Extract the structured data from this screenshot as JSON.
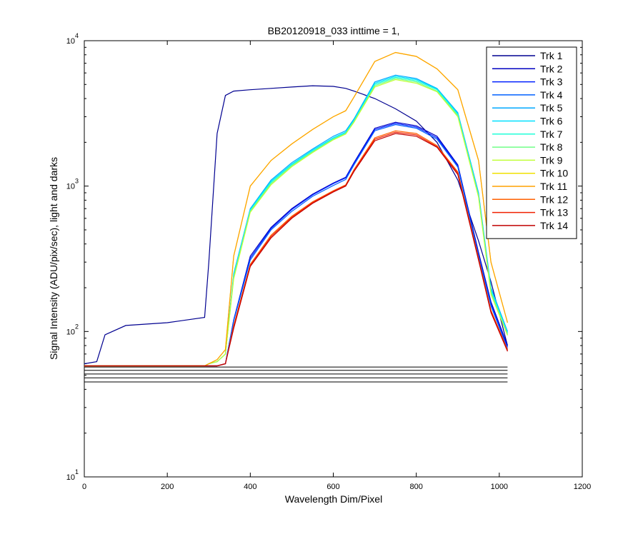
{
  "chart_data": {
    "type": "line",
    "title": "BB20120918_033 inttime = 1,",
    "xlabel": "Wavelength Dim/Pixel",
    "ylabel": "Signal Intensity (ADU/pix/sec), light and darks",
    "xlim": [
      0,
      1200
    ],
    "ylim": [
      10,
      10000
    ],
    "yscale": "log",
    "grid": false,
    "legend_position": "top-right",
    "x_ticks": [
      0,
      200,
      400,
      600,
      800,
      1000,
      1200
    ],
    "y_ticks": [
      {
        "value": 10,
        "base": "10",
        "exp": "1"
      },
      {
        "value": 100,
        "base": "10",
        "exp": "2"
      },
      {
        "value": 1000,
        "base": "10",
        "exp": "3"
      },
      {
        "value": 10000,
        "base": "10",
        "exp": "4"
      }
    ],
    "x": [
      0,
      30,
      50,
      100,
      200,
      290,
      300,
      320,
      340,
      360,
      400,
      450,
      500,
      550,
      600,
      630,
      650,
      700,
      750,
      800,
      850,
      900,
      950,
      980,
      1020
    ],
    "series": [
      {
        "name": "Trk 1",
        "color": "#000090",
        "values": [
          60,
          62,
          95,
          110,
          115,
          125,
          300,
          2300,
          4200,
          4500,
          4600,
          4700,
          4800,
          4900,
          4850,
          4700,
          4500,
          4000,
          3400,
          2800,
          2000,
          1100,
          420,
          220,
          80
        ]
      },
      {
        "name": "Trk 2",
        "color": "#0000c0",
        "values": [
          58,
          58,
          58,
          58,
          58,
          58,
          58,
          58,
          60,
          120,
          330,
          520,
          700,
          880,
          1050,
          1150,
          1450,
          2500,
          2750,
          2600,
          2200,
          1400,
          350,
          160,
          80
        ]
      },
      {
        "name": "Trk 3",
        "color": "#0020ff",
        "values": [
          58,
          58,
          58,
          58,
          58,
          58,
          58,
          58,
          60,
          120,
          320,
          510,
          690,
          870,
          1040,
          1140,
          1430,
          2450,
          2700,
          2550,
          2150,
          1380,
          340,
          155,
          78
        ]
      },
      {
        "name": "Trk 4",
        "color": "#0060ff",
        "values": [
          58,
          58,
          58,
          58,
          58,
          58,
          58,
          58,
          60,
          118,
          310,
          500,
          670,
          850,
          1010,
          1110,
          1400,
          2400,
          2650,
          2500,
          2100,
          1350,
          330,
          150,
          76
        ]
      },
      {
        "name": "Trk 5",
        "color": "#00a8ff",
        "values": [
          58,
          58,
          58,
          58,
          58,
          58,
          60,
          62,
          70,
          250,
          700,
          1100,
          1450,
          1800,
          2200,
          2400,
          2900,
          5200,
          5800,
          5500,
          4700,
          3200,
          900,
          200,
          100
        ]
      },
      {
        "name": "Trk 6",
        "color": "#00e0ff",
        "values": [
          58,
          58,
          58,
          58,
          58,
          58,
          60,
          62,
          70,
          245,
          690,
          1080,
          1420,
          1770,
          2150,
          2350,
          2850,
          5100,
          5700,
          5400,
          4650,
          3150,
          880,
          195,
          98
        ]
      },
      {
        "name": "Trk 7",
        "color": "#20ffd8",
        "values": [
          58,
          58,
          58,
          58,
          58,
          58,
          60,
          62,
          70,
          240,
          680,
          1060,
          1400,
          1740,
          2120,
          2320,
          2800,
          5000,
          5600,
          5300,
          4600,
          3100,
          860,
          190,
          96
        ]
      },
      {
        "name": "Trk 8",
        "color": "#70ff88",
        "values": [
          58,
          58,
          58,
          58,
          58,
          58,
          60,
          62,
          70,
          235,
          670,
          1040,
          1380,
          1720,
          2100,
          2300,
          2780,
          4900,
          5500,
          5200,
          4500,
          3050,
          850,
          185,
          95
        ]
      },
      {
        "name": "Trk 9",
        "color": "#c0ff38",
        "values": [
          58,
          58,
          58,
          58,
          58,
          58,
          60,
          62,
          70,
          230,
          660,
          1020,
          1360,
          1700,
          2080,
          2280,
          2750,
          4800,
          5400,
          5100,
          4450,
          3000,
          840,
          180,
          94
        ]
      },
      {
        "name": "Trk 10",
        "color": "#f0e000",
        "values": [
          58,
          58,
          58,
          58,
          58,
          58,
          60,
          64,
          75,
          330,
          1000,
          1500,
          1950,
          2450,
          3000,
          3300,
          4100,
          7200,
          8300,
          7800,
          6400,
          4600,
          1500,
          300,
          115
        ]
      },
      {
        "name": "Trk 11",
        "color": "#ffa000",
        "values": [
          58,
          58,
          58,
          58,
          58,
          58,
          60,
          64,
          75,
          330,
          1000,
          1500,
          1950,
          2450,
          3000,
          3300,
          4100,
          7200,
          8300,
          7800,
          6400,
          4600,
          1500,
          300,
          115
        ]
      },
      {
        "name": "Trk 12",
        "color": "#ff6000",
        "values": [
          58,
          58,
          58,
          58,
          58,
          58,
          58,
          58,
          60,
          110,
          290,
          460,
          620,
          780,
          930,
          1020,
          1300,
          2150,
          2400,
          2300,
          1900,
          1250,
          320,
          140,
          75
        ]
      },
      {
        "name": "Trk 13",
        "color": "#f02000",
        "values": [
          58,
          58,
          58,
          58,
          58,
          58,
          58,
          58,
          60,
          108,
          285,
          450,
          610,
          770,
          920,
          1010,
          1280,
          2100,
          2350,
          2250,
          1870,
          1230,
          315,
          138,
          74
        ]
      },
      {
        "name": "Trk 14",
        "color": "#c00000",
        "values": [
          58,
          58,
          58,
          58,
          58,
          58,
          58,
          58,
          60,
          105,
          280,
          440,
          600,
          760,
          910,
          1000,
          1260,
          2050,
          2300,
          2200,
          1850,
          1200,
          310,
          135,
          73
        ]
      }
    ],
    "dark_curves": [
      {
        "color": "#000000",
        "values": [
          45,
          45,
          45,
          45,
          45,
          45,
          45,
          45,
          45,
          45,
          45,
          45,
          45,
          45,
          45,
          45,
          45,
          45,
          45,
          45,
          45,
          45,
          45,
          45,
          45
        ]
      },
      {
        "color": "#000000",
        "values": [
          48,
          48,
          48,
          48,
          48,
          48,
          48,
          48,
          48,
          48,
          48,
          48,
          48,
          48,
          48,
          48,
          48,
          48,
          48,
          48,
          48,
          48,
          48,
          48,
          48
        ]
      },
      {
        "color": "#000000",
        "values": [
          51,
          51,
          51,
          51,
          51,
          51,
          51,
          51,
          51,
          51,
          51,
          51,
          51,
          51,
          51,
          51,
          51,
          51,
          51,
          51,
          51,
          51,
          51,
          51,
          51
        ]
      },
      {
        "color": "#000000",
        "values": [
          54,
          54,
          54,
          54,
          54,
          54,
          54,
          54,
          54,
          54,
          54,
          54,
          54,
          54,
          54,
          54,
          54,
          54,
          54,
          54,
          54,
          54,
          54,
          54,
          54
        ]
      },
      {
        "color": "#000000",
        "values": [
          57,
          57,
          57,
          57,
          57,
          57,
          57,
          57,
          57,
          57,
          57,
          57,
          57,
          57,
          57,
          57,
          57,
          57,
          57,
          57,
          57,
          57,
          57,
          57,
          57
        ]
      }
    ]
  }
}
